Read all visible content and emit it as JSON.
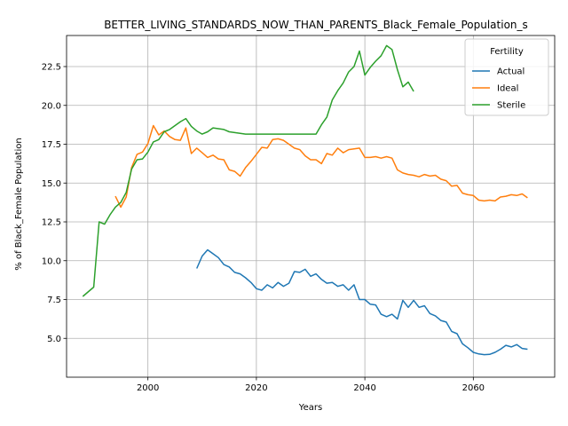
{
  "chart_data": {
    "type": "line",
    "title": "BETTER_LIVING_STANDARDS_NOW_THAN_PARENTS_Black_Female_Population_s",
    "xlabel": "Years",
    "ylabel": "% of Black_Female Population",
    "xlim": [
      1985,
      2075
    ],
    "ylim": [
      2.5,
      24.5
    ],
    "xticks": [
      2000,
      2020,
      2040,
      2060
    ],
    "yticks": [
      5.0,
      7.5,
      10.0,
      12.5,
      15.0,
      17.5,
      20.0,
      22.5
    ],
    "ytick_labels": [
      "5.0",
      "7.5",
      "10.0",
      "12.5",
      "15.0",
      "17.5",
      "20.0",
      "22.5"
    ],
    "grid": true,
    "legend": {
      "title": "Fertility",
      "position": "upper right"
    },
    "series": [
      {
        "name": "Actual",
        "color": "#1f77b4",
        "x": [
          2009,
          2010,
          2011,
          2012,
          2013,
          2014,
          2015,
          2016,
          2017,
          2018,
          2019,
          2020,
          2021,
          2022,
          2023,
          2024,
          2025,
          2026,
          2027,
          2028,
          2029,
          2030,
          2031,
          2032,
          2033,
          2034,
          2035,
          2036,
          2037,
          2038,
          2039,
          2040,
          2041,
          2042,
          2043,
          2044,
          2045,
          2046,
          2047,
          2048,
          2049,
          2050,
          2051,
          2052,
          2053,
          2054,
          2055,
          2056,
          2057,
          2058,
          2059,
          2060,
          2061,
          2062,
          2063,
          2064,
          2065,
          2066,
          2067,
          2068,
          2069,
          2070
        ],
        "y": [
          9.5,
          10.3,
          10.7,
          10.45,
          10.2,
          9.75,
          9.6,
          9.25,
          9.15,
          8.9,
          8.6,
          8.2,
          8.1,
          8.45,
          8.25,
          8.6,
          8.35,
          8.55,
          9.3,
          9.25,
          9.45,
          9.0,
          9.15,
          8.8,
          8.55,
          8.6,
          8.35,
          8.45,
          8.1,
          8.45,
          7.5,
          7.5,
          7.2,
          7.15,
          6.55,
          6.4,
          6.55,
          6.25,
          7.45,
          7.0,
          7.45,
          7.0,
          7.1,
          6.6,
          6.45,
          6.15,
          6.05,
          5.45,
          5.3,
          4.65,
          4.4,
          4.1,
          4.0,
          3.95,
          3.97,
          4.1,
          4.3,
          4.55,
          4.45,
          4.6,
          4.35,
          4.3
        ]
      },
      {
        "name": "Ideal",
        "color": "#ff7f0e",
        "x": [
          1994,
          1995,
          1996,
          1997,
          1998,
          1999,
          2000,
          2001,
          2002,
          2003,
          2004,
          2005,
          2006,
          2007,
          2008,
          2009,
          2010,
          2011,
          2012,
          2013,
          2014,
          2015,
          2016,
          2017,
          2018,
          2019,
          2020,
          2021,
          2022,
          2023,
          2024,
          2025,
          2026,
          2027,
          2028,
          2029,
          2030,
          2031,
          2032,
          2033,
          2034,
          2035,
          2036,
          2037,
          2038,
          2039,
          2040,
          2041,
          2042,
          2043,
          2044,
          2045,
          2046,
          2047,
          2048,
          2049,
          2050,
          2051,
          2052,
          2053,
          2054,
          2055,
          2056,
          2057,
          2058,
          2059,
          2060,
          2061,
          2062,
          2063,
          2064,
          2065,
          2066,
          2067,
          2068,
          2069,
          2070
        ],
        "y": [
          14.15,
          13.45,
          14.1,
          16.0,
          16.85,
          17.0,
          17.55,
          18.7,
          18.1,
          18.35,
          18.0,
          17.8,
          17.75,
          18.55,
          16.9,
          17.25,
          16.95,
          16.65,
          16.8,
          16.55,
          16.5,
          15.85,
          15.75,
          15.45,
          16.0,
          16.4,
          16.85,
          17.3,
          17.25,
          17.8,
          17.85,
          17.75,
          17.5,
          17.25,
          17.15,
          16.75,
          16.5,
          16.5,
          16.25,
          16.9,
          16.8,
          17.25,
          16.95,
          17.15,
          17.2,
          17.25,
          16.65,
          16.65,
          16.7,
          16.6,
          16.7,
          16.6,
          15.85,
          15.65,
          15.55,
          15.5,
          15.4,
          15.55,
          15.45,
          15.5,
          15.25,
          15.15,
          14.8,
          14.85,
          14.35,
          14.25,
          14.2,
          13.9,
          13.85,
          13.9,
          13.85,
          14.1,
          14.15,
          14.25,
          14.2,
          14.3,
          14.05
        ]
      },
      {
        "name": "Sterile",
        "color": "#2ca02c",
        "x": [
          1988,
          1990,
          1991,
          1992,
          1993,
          1994,
          1995,
          1996,
          1997,
          1998,
          1999,
          2000,
          2001,
          2002,
          2003,
          2004,
          2005,
          2006,
          2007,
          2008,
          2009,
          2010,
          2011,
          2012,
          2013,
          2014,
          2015,
          2016,
          2017,
          2018,
          2019,
          2020,
          2021,
          2022,
          2023,
          2024,
          2025,
          2026,
          2027,
          2028,
          2029,
          2030,
          2031,
          2032,
          2033,
          2034,
          2035,
          2036,
          2037,
          2038,
          2039,
          2040,
          2041,
          2042,
          2043,
          2044,
          2045,
          2046,
          2047,
          2048,
          2049
        ],
        "y": [
          7.7,
          8.3,
          12.5,
          12.35,
          12.95,
          13.45,
          13.75,
          14.4,
          15.9,
          16.5,
          16.55,
          17.0,
          17.65,
          17.8,
          18.3,
          18.45,
          18.7,
          18.95,
          19.15,
          18.65,
          18.35,
          18.15,
          18.3,
          18.55,
          18.5,
          18.45,
          18.3,
          18.25,
          18.2,
          18.15,
          18.15,
          18.15,
          18.15,
          18.15,
          18.15,
          18.15,
          18.15,
          18.15,
          18.15,
          18.15,
          18.15,
          18.15,
          18.15,
          18.75,
          19.25,
          20.35,
          20.95,
          21.45,
          22.15,
          22.5,
          23.5,
          21.95,
          22.45,
          22.85,
          23.2,
          23.85,
          23.6,
          22.3,
          21.2,
          21.5,
          20.9
        ]
      }
    ]
  }
}
